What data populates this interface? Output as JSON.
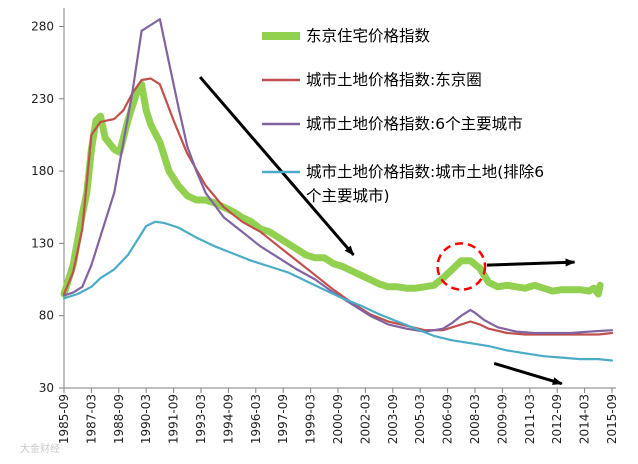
{
  "chart_data": {
    "type": "line",
    "title": "",
    "xlabel": "",
    "ylabel": "",
    "ylim": [
      30,
      290
    ],
    "yticks": [
      30,
      80,
      130,
      180,
      230,
      280
    ],
    "xticks": [
      "1985-09",
      "1987-03",
      "1988-09",
      "1990-03",
      "1991-09",
      "1993-03",
      "1994-09",
      "1996-03",
      "1997-09",
      "1999-03",
      "2000-09",
      "2002-03",
      "2003-09",
      "2005-03",
      "2006-09",
      "2008-03",
      "2009-09",
      "2011-03",
      "2012-09",
      "2014-03",
      "2015-09"
    ],
    "grid": false,
    "legend_position": "top-right (inside plot)",
    "series": [
      {
        "name": "东京住宅价格指数",
        "color": "#92d050",
        "points": [
          [
            1985.75,
            95
          ],
          [
            1986.25,
            115
          ],
          [
            1986.75,
            150
          ],
          [
            1987.0,
            165
          ],
          [
            1987.25,
            195
          ],
          [
            1987.5,
            215
          ],
          [
            1987.75,
            218
          ],
          [
            1988.0,
            203
          ],
          [
            1988.5,
            195
          ],
          [
            1988.8,
            193
          ],
          [
            1989.25,
            215
          ],
          [
            1989.75,
            235
          ],
          [
            1990.0,
            240
          ],
          [
            1990.25,
            222
          ],
          [
            1990.5,
            212
          ],
          [
            1991.0,
            200
          ],
          [
            1991.5,
            180
          ],
          [
            1992.0,
            170
          ],
          [
            1992.5,
            163
          ],
          [
            1993.0,
            160
          ],
          [
            1993.5,
            160
          ],
          [
            1994.0,
            158
          ],
          [
            1994.5,
            155
          ],
          [
            1995.0,
            152
          ],
          [
            1995.5,
            148
          ],
          [
            1996.0,
            145
          ],
          [
            1996.5,
            140
          ],
          [
            1997.0,
            138
          ],
          [
            1997.5,
            134
          ],
          [
            1998.0,
            130
          ],
          [
            1998.5,
            126
          ],
          [
            1999.0,
            122
          ],
          [
            1999.5,
            120
          ],
          [
            2000.0,
            120
          ],
          [
            2000.5,
            116
          ],
          [
            2001.0,
            114
          ],
          [
            2001.5,
            111
          ],
          [
            2002.0,
            108
          ],
          [
            2002.5,
            105
          ],
          [
            2003.0,
            102
          ],
          [
            2003.5,
            100
          ],
          [
            2004.0,
            100
          ],
          [
            2004.5,
            99
          ],
          [
            2005.0,
            99
          ],
          [
            2005.5,
            100
          ],
          [
            2006.0,
            101
          ],
          [
            2006.5,
            106
          ],
          [
            2007.0,
            112
          ],
          [
            2007.5,
            118
          ],
          [
            2008.0,
            118
          ],
          [
            2008.5,
            113
          ],
          [
            2009.0,
            103
          ],
          [
            2009.5,
            100
          ],
          [
            2010.0,
            101
          ],
          [
            2010.5,
            100
          ],
          [
            2011.0,
            99
          ],
          [
            2011.5,
            101
          ],
          [
            2012.0,
            99
          ],
          [
            2012.5,
            97
          ],
          [
            2013.0,
            98
          ],
          [
            2013.5,
            98
          ],
          [
            2014.0,
            98
          ],
          [
            2014.5,
            97
          ],
          [
            2014.75,
            99
          ],
          [
            2015.0,
            95
          ],
          [
            2015.1,
            101
          ]
        ]
      },
      {
        "name": "城市土地价格指数:东京圈",
        "color": "#c0504d",
        "points": [
          [
            1985.75,
            95
          ],
          [
            1986.25,
            110
          ],
          [
            1986.75,
            140
          ],
          [
            1987.25,
            205
          ],
          [
            1987.75,
            214
          ],
          [
            1988.5,
            216
          ],
          [
            1989.0,
            222
          ],
          [
            1989.5,
            234
          ],
          [
            1990.0,
            243
          ],
          [
            1990.5,
            244
          ],
          [
            1991.0,
            240
          ],
          [
            1991.75,
            215
          ],
          [
            1992.5,
            192
          ],
          [
            1993.5,
            170
          ],
          [
            1994.5,
            155
          ],
          [
            1995.5,
            145
          ],
          [
            1996.5,
            138
          ],
          [
            1997.5,
            128
          ],
          [
            1998.5,
            118
          ],
          [
            1999.5,
            108
          ],
          [
            2000.5,
            98
          ],
          [
            2001.5,
            89
          ],
          [
            2002.5,
            81
          ],
          [
            2003.5,
            76
          ],
          [
            2004.5,
            73
          ],
          [
            2005.5,
            70
          ],
          [
            2006.5,
            70
          ],
          [
            2007.5,
            74
          ],
          [
            2008.0,
            76
          ],
          [
            2008.5,
            74
          ],
          [
            2009.0,
            71
          ],
          [
            2010.0,
            68
          ],
          [
            2011.0,
            67
          ],
          [
            2012.0,
            67
          ],
          [
            2013.0,
            67
          ],
          [
            2014.0,
            67
          ],
          [
            2015.0,
            67
          ],
          [
            2015.75,
            68
          ]
        ]
      },
      {
        "name": "城市土地价格指数:6个主要城市",
        "color": "#8064a2",
        "points": [
          [
            1985.75,
            94
          ],
          [
            1986.25,
            96
          ],
          [
            1986.75,
            100
          ],
          [
            1987.25,
            115
          ],
          [
            1987.75,
            135
          ],
          [
            1988.5,
            165
          ],
          [
            1989.0,
            200
          ],
          [
            1989.5,
            235
          ],
          [
            1990.0,
            277
          ],
          [
            1990.5,
            281
          ],
          [
            1991.0,
            285
          ],
          [
            1991.5,
            255
          ],
          [
            1992.0,
            225
          ],
          [
            1992.5,
            197
          ],
          [
            1993.0,
            180
          ],
          [
            1993.5,
            165
          ],
          [
            1994.5,
            148
          ],
          [
            1995.5,
            138
          ],
          [
            1996.5,
            128
          ],
          [
            1997.5,
            120
          ],
          [
            1998.5,
            112
          ],
          [
            1999.5,
            105
          ],
          [
            2000.5,
            96
          ],
          [
            2001.5,
            88
          ],
          [
            2002.5,
            80
          ],
          [
            2003.5,
            74
          ],
          [
            2004.5,
            71
          ],
          [
            2005.0,
            70
          ],
          [
            2005.5,
            69
          ],
          [
            2006.0,
            70
          ],
          [
            2006.5,
            71
          ],
          [
            2007.0,
            75
          ],
          [
            2007.5,
            80
          ],
          [
            2008.0,
            84
          ],
          [
            2008.25,
            82
          ],
          [
            2008.75,
            77
          ],
          [
            2009.5,
            72
          ],
          [
            2010.5,
            69
          ],
          [
            2011.5,
            68
          ],
          [
            2012.5,
            68
          ],
          [
            2013.5,
            68
          ],
          [
            2014.5,
            69
          ],
          [
            2015.75,
            70
          ]
        ]
      },
      {
        "name": "城市土地价格指数:城市土地(排除6个主要城市)",
        "color": "#4bacc6",
        "points": [
          [
            1985.75,
            92
          ],
          [
            1986.5,
            95
          ],
          [
            1987.25,
            100
          ],
          [
            1987.75,
            106
          ],
          [
            1988.5,
            112
          ],
          [
            1989.25,
            122
          ],
          [
            1989.75,
            132
          ],
          [
            1990.25,
            142
          ],
          [
            1990.75,
            145
          ],
          [
            1991.25,
            144
          ],
          [
            1992.0,
            141
          ],
          [
            1993.0,
            134
          ],
          [
            1994.0,
            128
          ],
          [
            1995.0,
            123
          ],
          [
            1996.0,
            118
          ],
          [
            1997.0,
            114
          ],
          [
            1998.0,
            110
          ],
          [
            1999.0,
            104
          ],
          [
            2000.0,
            98
          ],
          [
            2001.0,
            92
          ],
          [
            2002.0,
            87
          ],
          [
            2003.0,
            81
          ],
          [
            2004.0,
            76
          ],
          [
            2005.0,
            71
          ],
          [
            2006.0,
            66
          ],
          [
            2007.0,
            63
          ],
          [
            2008.0,
            61
          ],
          [
            2009.0,
            59
          ],
          [
            2010.0,
            56
          ],
          [
            2011.0,
            54
          ],
          [
            2012.0,
            52
          ],
          [
            2013.0,
            51
          ],
          [
            2014.0,
            50
          ],
          [
            2015.0,
            50
          ],
          [
            2015.75,
            49
          ]
        ]
      }
    ],
    "annotations": [
      {
        "type": "arrow",
        "color": "#000000",
        "from": [
          1993.2,
          245
        ],
        "to": [
          2001.6,
          122
        ]
      },
      {
        "type": "dashed-ellipse",
        "color": "#ff0000",
        "center": [
          2007.5,
          114
        ],
        "radius": [
          1.3,
          16
        ]
      },
      {
        "type": "arrow",
        "color": "#000000",
        "from": [
          2008.9,
          115
        ],
        "to": [
          2013.7,
          117
        ]
      },
      {
        "type": "arrow",
        "color": "#000000",
        "from": [
          2009.3,
          47
        ],
        "to": [
          2013.0,
          33
        ]
      }
    ]
  },
  "watermark": "大金财经"
}
